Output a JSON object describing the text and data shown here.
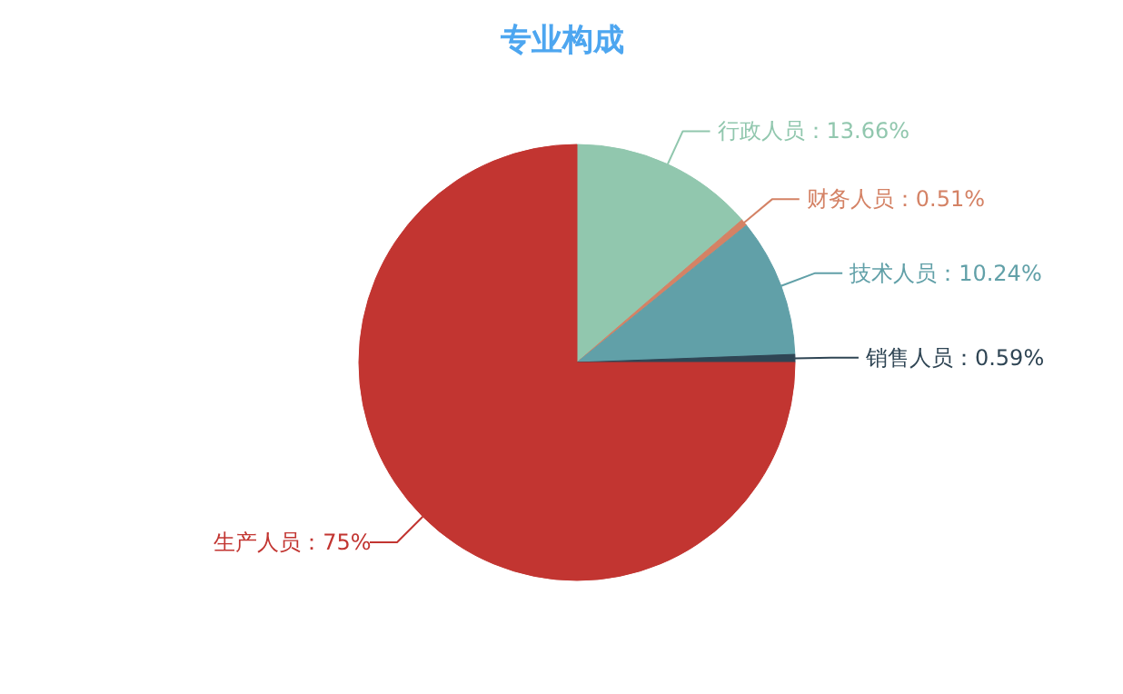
{
  "chart_data": {
    "type": "pie",
    "title": "专业构成",
    "categories": [
      "行政人员",
      "财务人员",
      "技术人员",
      "销售人员",
      "生产人员"
    ],
    "values": [
      13.66,
      0.51,
      10.24,
      0.59,
      75
    ],
    "colors": [
      "#91c7ae",
      "#d48265",
      "#61a0a8",
      "#2f4554",
      "#c23531"
    ],
    "value_labels": [
      "：13.66%",
      "：0.51%",
      "：10.24%",
      "：0.59%",
      "：75%"
    ]
  }
}
